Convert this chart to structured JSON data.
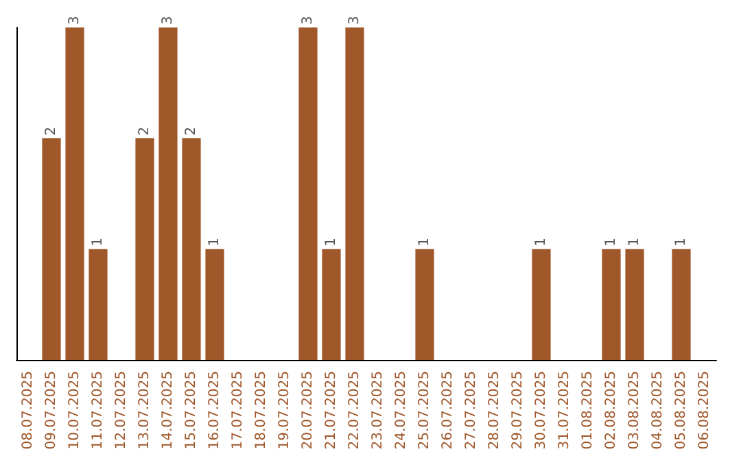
{
  "chart_data": {
    "type": "bar",
    "categories": [
      "08.07.2025",
      "09.07.2025",
      "10.07.2025",
      "11.07.2025",
      "12.07.2025",
      "13.07.2025",
      "14.07.2025",
      "15.07.2025",
      "16.07.2025",
      "17.07.2025",
      "18.07.2025",
      "19.07.2025",
      "20.07.2025",
      "21.07.2025",
      "22.07.2025",
      "23.07.2025",
      "24.07.2025",
      "25.07.2025",
      "26.07.2025",
      "27.07.2025",
      "28.07.2025",
      "29.07.2025",
      "30.07.2025",
      "31.07.2025",
      "01.08.2025",
      "02.08.2025",
      "03.08.2025",
      "04.08.2025",
      "05.08.2025",
      "06.08.2025"
    ],
    "values": [
      0,
      2,
      3,
      1,
      0,
      2,
      3,
      2,
      1,
      0,
      0,
      0,
      3,
      1,
      3,
      0,
      0,
      1,
      0,
      0,
      0,
      0,
      1,
      0,
      0,
      1,
      1,
      0,
      1,
      0
    ],
    "value_labels": [
      null,
      "2",
      "3",
      "1",
      null,
      "2",
      "3",
      "2",
      "1",
      null,
      null,
      null,
      "3",
      "1",
      "3",
      null,
      null,
      "1",
      null,
      null,
      null,
      null,
      "1",
      null,
      null,
      "1",
      "1",
      null,
      "1",
      null
    ],
    "color": "#a0572a",
    "grid": false,
    "tick_labels": "x"
  }
}
